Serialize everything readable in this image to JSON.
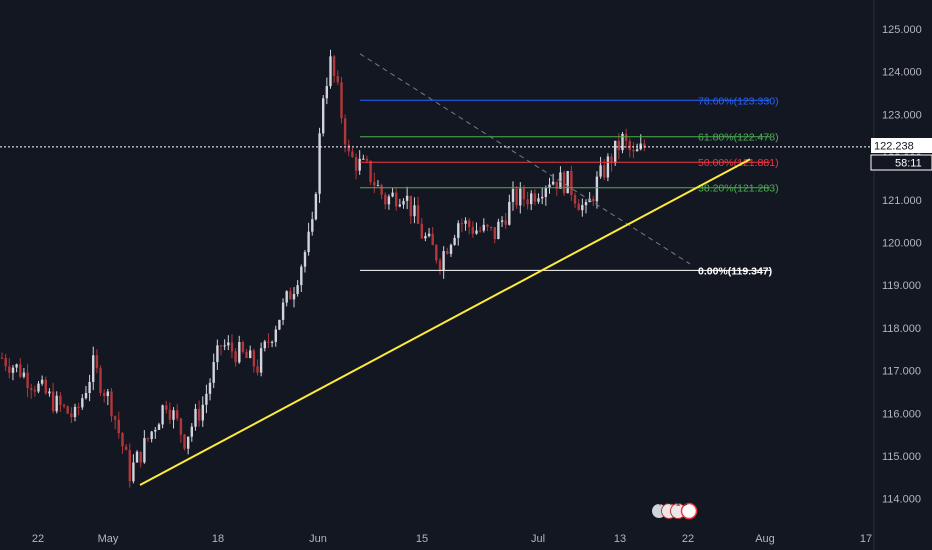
{
  "chart_data": {
    "type": "candlestick",
    "x_tick_labels": [
      "22",
      "May",
      "18",
      "Jun",
      "15",
      "Jul",
      "13",
      "22",
      "Aug",
      "17"
    ],
    "y_tick_labels": [
      "125.000",
      "124.000",
      "123.000",
      "122.000",
      "121.000",
      "120.000",
      "119.000",
      "118.000",
      "117.000",
      "116.000",
      "115.000",
      "114.000"
    ],
    "y_ticks": [
      125,
      124,
      123,
      122,
      121,
      120,
      119,
      118,
      117,
      116,
      115,
      114
    ],
    "ylim": [
      113.5,
      125.6
    ],
    "grid": false,
    "current_price": 122.238,
    "current_price_label": "122.238",
    "countdown_label": "58:11",
    "ohlc_key_points": [
      {
        "t": 0,
        "close": 117.3
      },
      {
        "t": 5,
        "close": 117.0
      },
      {
        "t": 10,
        "close": 116.6
      },
      {
        "t": 15,
        "close": 116.2
      },
      {
        "t": 20,
        "close": 115.9
      },
      {
        "t": 25,
        "close": 117.1
      },
      {
        "t": 30,
        "close": 116.2
      },
      {
        "t": 35,
        "close": 114.6
      },
      {
        "t": 40,
        "close": 115.4
      },
      {
        "t": 45,
        "close": 116.3
      },
      {
        "t": 50,
        "close": 115.4
      },
      {
        "t": 55,
        "close": 116.2
      },
      {
        "t": 60,
        "close": 117.6
      },
      {
        "t": 65,
        "close": 117.4
      },
      {
        "t": 70,
        "close": 117.1
      },
      {
        "t": 75,
        "close": 118.1
      },
      {
        "t": 80,
        "close": 119.0
      },
      {
        "t": 85,
        "close": 120.3
      },
      {
        "t": 88,
        "close": 123.5
      },
      {
        "t": 90,
        "close": 124.2
      },
      {
        "t": 92,
        "close": 123.5
      },
      {
        "t": 95,
        "close": 122.0
      },
      {
        "t": 100,
        "close": 121.7
      },
      {
        "t": 105,
        "close": 121.0
      },
      {
        "t": 110,
        "close": 121.2
      },
      {
        "t": 115,
        "close": 120.2
      },
      {
        "t": 120,
        "close": 119.6
      },
      {
        "t": 125,
        "close": 120.5
      },
      {
        "t": 130,
        "close": 120.3
      },
      {
        "t": 135,
        "close": 120.2
      },
      {
        "t": 140,
        "close": 121.0
      },
      {
        "t": 145,
        "close": 121.1
      },
      {
        "t": 150,
        "close": 121.5
      },
      {
        "t": 155,
        "close": 121.4
      },
      {
        "t": 160,
        "close": 120.7
      },
      {
        "t": 163,
        "close": 121.4
      },
      {
        "t": 167,
        "close": 122.0
      },
      {
        "t": 170,
        "close": 122.4
      },
      {
        "t": 173,
        "close": 122.0
      },
      {
        "t": 176,
        "close": 122.24
      }
    ],
    "fibonacci_levels": [
      {
        "label": "78.60%(123.330)",
        "value": 123.33,
        "color": "#2962ff"
      },
      {
        "label": "61.80%(122.478)",
        "value": 122.478,
        "color": "#4caf50"
      },
      {
        "label": "50.00%(121.881)",
        "value": 121.881,
        "color": "#f23645"
      },
      {
        "label": "38.20%(121.283)",
        "value": 121.283,
        "color": "#4caf50"
      },
      {
        "label": "0.00%(119.347)",
        "value": 119.347,
        "color": "#ffffff"
      }
    ],
    "trendline": {
      "from": 114.32,
      "to": 121.95,
      "color": "#ffeb3b"
    },
    "dashed_line": {
      "from": 124.42,
      "to": 119.5,
      "color": "#787b86"
    }
  },
  "badges": {
    "b1": "4",
    "b2": "4",
    "b3": "1",
    "b4": "3"
  },
  "colors": {
    "background": "#131722",
    "up_candle": "#d1d4dc",
    "down_candle": "#b2373a",
    "axis_text": "#b2b5be",
    "price_badge_bg": "#ffffff",
    "price_badge_text": "#131722"
  }
}
